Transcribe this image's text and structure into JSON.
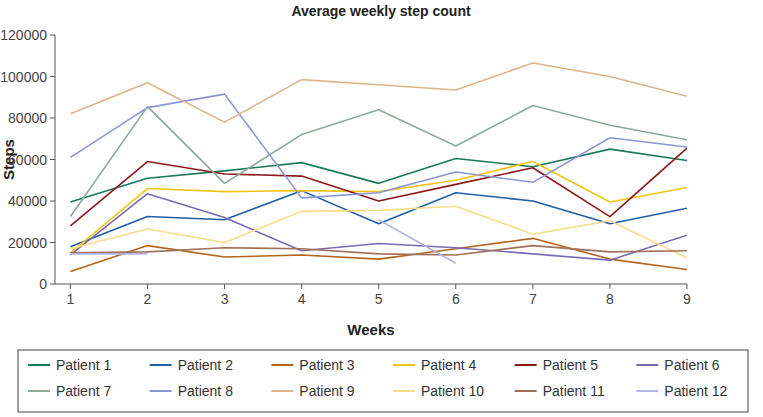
{
  "chart_data": {
    "type": "line",
    "title": "Average weekly step count",
    "x_label": "Weeks",
    "y_label": "Steps",
    "x": [
      1,
      2,
      3,
      4,
      5,
      6,
      7,
      8,
      9
    ],
    "xlim": [
      0.8,
      9
    ],
    "xticks": [
      1,
      2,
      3,
      4,
      5,
      6,
      7,
      8,
      9
    ],
    "ylim": [
      0,
      120000
    ],
    "yticks": [
      0,
      20000,
      40000,
      60000,
      80000,
      100000,
      120000
    ],
    "grid": false,
    "legend": "bottom",
    "series": [
      {
        "name": "Patient 1",
        "color": "#1b7a5c",
        "values": [
          39500,
          51000,
          54500,
          58500,
          48500,
          60500,
          56500,
          65000,
          59500
        ]
      },
      {
        "name": "Patient 2",
        "color": "#1f5ea8",
        "values": [
          18000,
          32500,
          31000,
          45000,
          29000,
          44000,
          40000,
          29000,
          36500
        ]
      },
      {
        "name": "Patient 3",
        "color": "#b5651d",
        "values": [
          6000,
          18500,
          13000,
          14000,
          12000,
          17000,
          22000,
          12000,
          7000
        ]
      },
      {
        "name": "Patient 4",
        "color": "#f2c417",
        "values": [
          15000,
          46000,
          44500,
          45000,
          44500,
          50000,
          59000,
          39500,
          46500
        ]
      },
      {
        "name": "Patient 5",
        "color": "#8b1a1a",
        "values": [
          28000,
          59000,
          53000,
          52000,
          40000,
          48000,
          56000,
          32500,
          65500
        ]
      },
      {
        "name": "Patient 6",
        "color": "#7b6ab5",
        "values": [
          14000,
          43500,
          32000,
          16000,
          19500,
          17500,
          14500,
          11500,
          23500
        ]
      },
      {
        "name": "Patient 7",
        "color": "#8aab9a",
        "values": [
          32500,
          85500,
          48500,
          72000,
          84000,
          66500,
          86000,
          76500,
          69500
        ]
      },
      {
        "name": "Patient 8",
        "color": "#8c96d6",
        "values": [
          61000,
          85000,
          91500,
          41500,
          44000,
          54000,
          49000,
          70500,
          66000
        ]
      },
      {
        "name": "Patient 9",
        "color": "#dcb48a",
        "values": [
          82000,
          97000,
          78000,
          98500,
          96000,
          93500,
          106500,
          100000,
          90500
        ]
      },
      {
        "name": "Patient 10",
        "color": "#f7dc8a",
        "values": [
          17000,
          26500,
          20000,
          35000,
          35500,
          37500,
          24000,
          30500,
          12500
        ]
      },
      {
        "name": "Patient 11",
        "color": "#a0705a",
        "values": [
          15000,
          15500,
          17500,
          17000,
          14500,
          14000,
          18500,
          15500,
          16000
        ]
      },
      {
        "name": "Patient 12",
        "color": "#b4b4e0",
        "values": [
          14500,
          14500,
          null,
          null,
          31000,
          10000,
          null,
          null,
          null
        ]
      }
    ]
  }
}
